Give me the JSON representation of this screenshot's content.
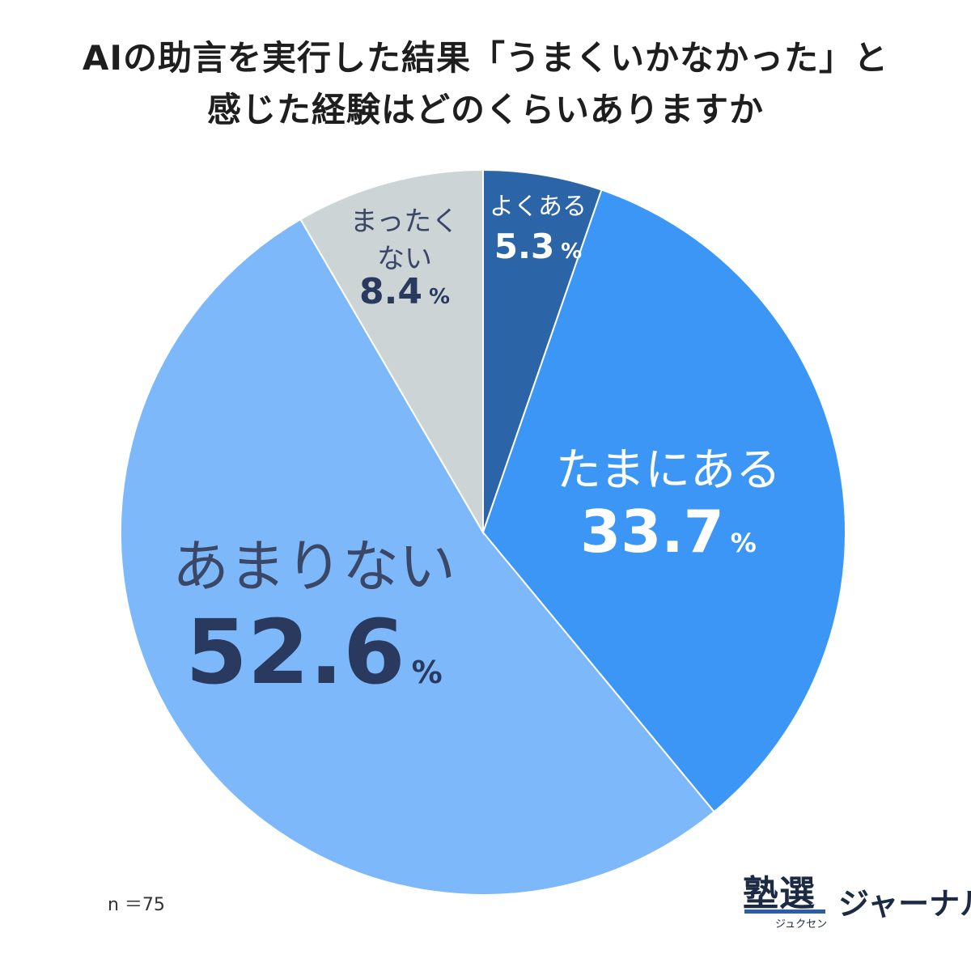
{
  "chart_data": {
    "type": "pie",
    "title_lines": [
      "AIの助言を実行した結果「うまくいかなかった」と",
      "感じた経験はどのくらいありますか"
    ],
    "slices": [
      {
        "label_lines": [
          "よくある"
        ],
        "value": 5.3,
        "display": "5.3",
        "unit": "%",
        "color": "#2c64a8",
        "label_color": "#ffffff",
        "value_color": "#ffffff"
      },
      {
        "label_lines": [
          "たまにある"
        ],
        "value": 33.7,
        "display": "33.7",
        "unit": "%",
        "color": "#3b96f6",
        "label_color": "#ffffff",
        "value_color": "#ffffff"
      },
      {
        "label_lines": [
          "あまりない"
        ],
        "value": 52.6,
        "display": "52.6",
        "unit": "%",
        "color": "#7db8fb",
        "label_color": "#3a4766",
        "value_color": "#2a3a5e"
      },
      {
        "label_lines": [
          "まったく",
          "ない"
        ],
        "value": 8.4,
        "display": "8.4",
        "unit": "%",
        "color": "#ccd4d6",
        "label_color": "#3a4766",
        "value_color": "#2a3a5e"
      }
    ],
    "note": "n ＝75"
  },
  "logo": {
    "kanji": "塾選",
    "ruby": "ジュクセン",
    "journal": "ジャーナル"
  }
}
